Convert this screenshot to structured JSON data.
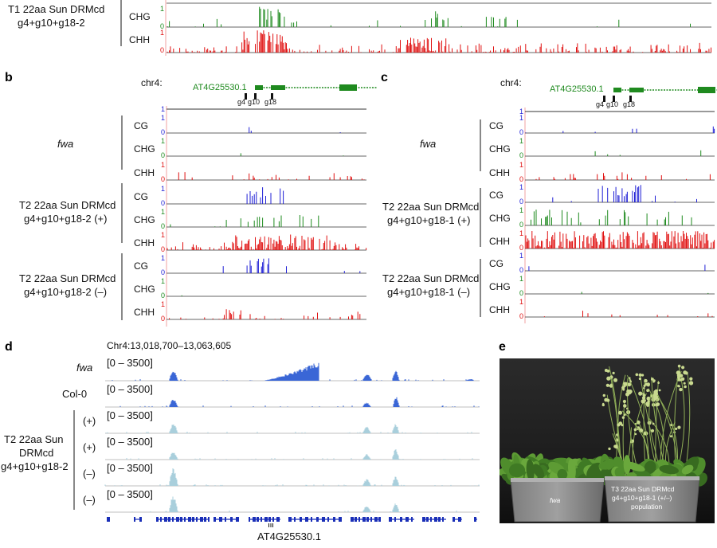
{
  "panel_top": {
    "sample_line1": "T1 22aa Sun DRMcd",
    "sample_line2": "g4+g10+g18-2",
    "contexts": [
      "CHG",
      "CHH"
    ],
    "scale_one": "1",
    "scale_zero": "0"
  },
  "panel_b": {
    "letter": "b",
    "chrom": "chr4:",
    "gene": "AT4G25530.1",
    "guides": [
      "g4",
      "g10",
      "g18"
    ],
    "groups": [
      {
        "name_line1": "fwa",
        "name_line2": "",
        "italic": true
      },
      {
        "name_line1": "T2 22aa Sun DRMcd",
        "name_line2": "g4+g10+g18-2 (+)",
        "italic": false
      },
      {
        "name_line1": "T2 22aa Sun DRMcd",
        "name_line2": "g4+g10+g18-2 (–)",
        "italic": false
      }
    ],
    "contexts": [
      "CG",
      "CHG",
      "CHH"
    ]
  },
  "panel_c": {
    "letter": "c",
    "chrom": "chr4:",
    "gene": "AT4G25530.1",
    "guides": [
      "g4",
      "g10",
      "g18"
    ],
    "groups": [
      {
        "name_line1": "fwa",
        "name_line2": "",
        "italic": true
      },
      {
        "name_line1": "T2 22aa Sun DRMcd",
        "name_line2": "g4+g10+g18-1 (+)",
        "italic": false
      },
      {
        "name_line1": "T2 22aa Sun DRMcd",
        "name_line2": "g4+g10+g18-1 (–)",
        "italic": false
      }
    ],
    "contexts": [
      "CG",
      "CHG",
      "CHH"
    ]
  },
  "panel_d": {
    "letter": "d",
    "coords": "Chr4:13,018,700–13,063,605",
    "range": "[0 – 3500]",
    "tracks": [
      {
        "label": "fwa",
        "italic": true
      },
      {
        "label": "Col-0",
        "italic": false
      },
      {
        "label": "(+)",
        "italic": false
      },
      {
        "label": "(+)",
        "italic": false
      },
      {
        "label": "(–)",
        "italic": false
      },
      {
        "label": "(–)",
        "italic": false
      }
    ],
    "group_line1": "T2 22aa Sun",
    "group_line2": "DRMcd",
    "group_line3": "g4+g10+g18-2",
    "gene": "AT4G25530.1"
  },
  "panel_e": {
    "letter": "e",
    "pot_left": "fwa",
    "pot_right_line1": "T3 22aa Sun DRMcd",
    "pot_right_line2": "g4+g10+g18-1 (+/–)",
    "pot_right_line3": "population"
  },
  "colors": {
    "cg": "#1f1fd6",
    "chg": "#1e8a1e",
    "chh": "#e01010",
    "gene": "#1f8a1f",
    "rna_dark": "#3a66d6",
    "rna_light": "#a9cfdc",
    "annot": "#1a2fb8"
  }
}
